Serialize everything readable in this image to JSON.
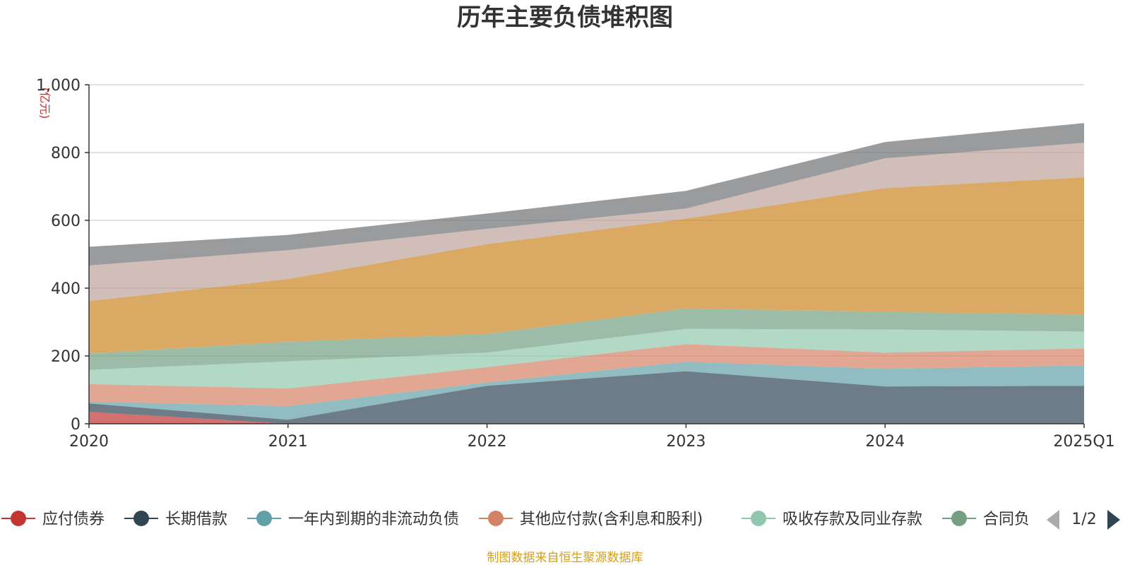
{
  "chart_data": {
    "type": "area",
    "stacked": true,
    "title": "历年主要负债堆积图",
    "unit": "(亿元)",
    "categories": [
      "2020",
      "2021",
      "2022",
      "2023",
      "2024",
      "2025Q1"
    ],
    "y_ticks": [
      "0",
      "200",
      "400",
      "600",
      "800",
      "1,000"
    ],
    "ylim": [
      0,
      1000
    ],
    "grid": true,
    "legend_position": "bottom",
    "series": [
      {
        "name": "应付债券",
        "color": "#c23531",
        "values": [
          35,
          0,
          0,
          0,
          0,
          0
        ]
      },
      {
        "name": "长期借款",
        "color": "#2f4554",
        "values": [
          25,
          12,
          112,
          155,
          110,
          112
        ]
      },
      {
        "name": "一年内到期的非流动负债",
        "color": "#61a0a8",
        "values": [
          5,
          40,
          10,
          28,
          52,
          60
        ]
      },
      {
        "name": "其他应付款(含利息和股利)",
        "color": "#d48265",
        "values": [
          52,
          52,
          45,
          52,
          48,
          50
        ]
      },
      {
        "name": "吸收存款及同业存款",
        "color": "#91c7ae",
        "values": [
          42,
          80,
          43,
          45,
          68,
          50
        ]
      },
      {
        "name": "合同负债",
        "color": "#749f83",
        "values": [
          48,
          58,
          55,
          60,
          52,
          50
        ]
      },
      {
        "name": "",
        "color": "#ca8622",
        "values": [
          155,
          185,
          265,
          265,
          365,
          405
        ]
      },
      {
        "name": "",
        "color": "#bda29a",
        "values": [
          105,
          85,
          45,
          30,
          88,
          102
        ]
      },
      {
        "name": "",
        "color": "#6e7074",
        "values": [
          55,
          45,
          45,
          52,
          48,
          58
        ]
      }
    ]
  },
  "legend": {
    "page": "1/2",
    "truncated_last_label": "合同负"
  },
  "source_note": "制图数据来自恒生聚源数据库",
  "icons": {
    "prev": "triangle-left-icon",
    "next": "triangle-right-icon"
  }
}
